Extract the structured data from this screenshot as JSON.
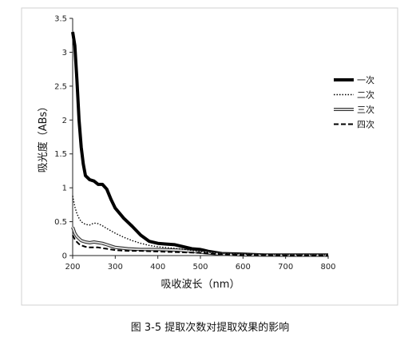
{
  "caption": "图 3-5 提取次数对提取效果的影响",
  "chart_data": {
    "type": "line",
    "title": "",
    "xlabel": "吸收波长（nm）",
    "ylabel": "吸光度（ABs）",
    "xlim": [
      200,
      800
    ],
    "ylim": [
      0,
      3.5
    ],
    "x_ticks": [
      200,
      300,
      400,
      500,
      600,
      700,
      800
    ],
    "y_ticks": [
      0,
      0.5,
      1,
      1.5,
      2,
      2.5,
      3,
      3.5
    ],
    "grid": false,
    "legend_position": "right",
    "series": [
      {
        "name": "一次",
        "style": "thick-solid",
        "color": "#000000",
        "x": [
          200,
          205,
          210,
          215,
          220,
          225,
          230,
          240,
          250,
          260,
          270,
          280,
          290,
          300,
          320,
          340,
          360,
          380,
          400,
          420,
          440,
          460,
          480,
          500,
          520,
          550,
          600,
          650,
          700,
          750,
          800
        ],
        "y": [
          3.3,
          3.1,
          2.6,
          2.0,
          1.6,
          1.35,
          1.18,
          1.12,
          1.1,
          1.05,
          1.05,
          0.98,
          0.83,
          0.7,
          0.55,
          0.43,
          0.3,
          0.21,
          0.18,
          0.17,
          0.16,
          0.13,
          0.1,
          0.09,
          0.06,
          0.03,
          0.02,
          0.01,
          0.01,
          0.01,
          0.01
        ]
      },
      {
        "name": "二次",
        "style": "dotted",
        "color": "#000000",
        "x": [
          200,
          205,
          210,
          215,
          220,
          230,
          240,
          250,
          260,
          270,
          280,
          300,
          320,
          340,
          360,
          380,
          400,
          450,
          500,
          550,
          600,
          700,
          800
        ],
        "y": [
          0.88,
          0.72,
          0.62,
          0.55,
          0.5,
          0.46,
          0.45,
          0.48,
          0.47,
          0.44,
          0.4,
          0.33,
          0.27,
          0.22,
          0.18,
          0.15,
          0.13,
          0.1,
          0.06,
          0.03,
          0.02,
          0.01,
          0.01
        ]
      },
      {
        "name": "三次",
        "style": "double-gray",
        "color": "#9a9a9a",
        "x": [
          200,
          205,
          210,
          215,
          220,
          230,
          240,
          250,
          260,
          270,
          280,
          300,
          330,
          360,
          400,
          450,
          500,
          550,
          600,
          700,
          800
        ],
        "y": [
          0.42,
          0.33,
          0.28,
          0.25,
          0.22,
          0.2,
          0.19,
          0.2,
          0.19,
          0.18,
          0.16,
          0.12,
          0.1,
          0.09,
          0.09,
          0.08,
          0.05,
          0.02,
          0.01,
          0.005,
          0.005
        ]
      },
      {
        "name": "四次",
        "style": "dashed",
        "color": "#000000",
        "x": [
          200,
          205,
          210,
          215,
          220,
          230,
          240,
          250,
          260,
          270,
          280,
          300,
          330,
          360,
          400,
          450,
          500,
          550,
          600,
          700,
          800
        ],
        "y": [
          0.3,
          0.24,
          0.2,
          0.17,
          0.15,
          0.13,
          0.12,
          0.12,
          0.12,
          0.11,
          0.1,
          0.08,
          0.07,
          0.07,
          0.06,
          0.05,
          0.04,
          0.02,
          0.01,
          0.005,
          0.005
        ]
      }
    ]
  }
}
